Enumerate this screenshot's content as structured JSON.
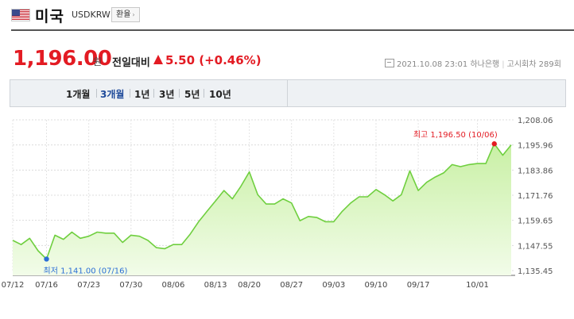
{
  "header": {
    "flag_icon": "us-flag-icon",
    "country": "미국",
    "code": "USDKRW",
    "exchange_button": "환율"
  },
  "quote": {
    "price": "1,196.00",
    "unit": "원",
    "compare_label": "전일대비",
    "change": "5.50 (+0.46%)",
    "direction": "up",
    "timestamp": "2021.10.08 23:01",
    "bank": "하나은행",
    "notice": "고시회차 289회"
  },
  "colors": {
    "up": "#e31b23",
    "line": "#6fcf3f",
    "fill_top": "#c9f0a5",
    "fill_bottom": "#f2fce9",
    "min_marker": "#2b6fd6",
    "max_marker": "#e31b23"
  },
  "tabs": [
    {
      "label": "1개월",
      "active": false
    },
    {
      "label": "3개월",
      "active": true
    },
    {
      "label": "1년",
      "active": false
    },
    {
      "label": "3년",
      "active": false
    },
    {
      "label": "5년",
      "active": false
    },
    {
      "label": "10년",
      "active": false
    }
  ],
  "chart_data": {
    "type": "area",
    "ylim": [
      1135.45,
      1208.06
    ],
    "yticks": [
      "1,208.06",
      "1,195.96",
      "1,183.86",
      "1,171.76",
      "1,159.65",
      "1,147.55",
      "1,135.45"
    ],
    "xticks": [
      {
        "label": "07/12",
        "index": 0
      },
      {
        "label": "07/16",
        "index": 4
      },
      {
        "label": "07/23",
        "index": 9
      },
      {
        "label": "07/30",
        "index": 14
      },
      {
        "label": "08/06",
        "index": 19
      },
      {
        "label": "08/13",
        "index": 24
      },
      {
        "label": "08/20",
        "index": 28
      },
      {
        "label": "08/27",
        "index": 33
      },
      {
        "label": "09/03",
        "index": 38
      },
      {
        "label": "09/10",
        "index": 43
      },
      {
        "label": "09/17",
        "index": 48
      },
      {
        "label": "10/01",
        "index": 55
      }
    ],
    "values": [
      1150.0,
      1148.0,
      1151.0,
      1145.0,
      1141.0,
      1152.5,
      1150.5,
      1154.0,
      1151.0,
      1152.0,
      1154.0,
      1153.5,
      1153.5,
      1149.0,
      1152.5,
      1152.0,
      1150.0,
      1146.5,
      1146.0,
      1148.0,
      1148.0,
      1153.0,
      1159.0,
      1164.0,
      1169.0,
      1174.0,
      1170.0,
      1176.0,
      1183.0,
      1172.0,
      1167.5,
      1167.5,
      1170.0,
      1168.0,
      1159.5,
      1161.5,
      1161.0,
      1159.0,
      1159.0,
      1164.0,
      1168.0,
      1171.0,
      1171.0,
      1174.5,
      1172.0,
      1169.0,
      1172.0,
      1183.5,
      1174.0,
      1178.0,
      1180.5,
      1182.5,
      1186.5,
      1185.5,
      1186.5,
      1187.0,
      1187.0,
      1196.5,
      1191.0,
      1196.0
    ],
    "min": {
      "label": "최저 1,141.00 (07/16)",
      "index": 4,
      "value": 1141.0
    },
    "max": {
      "label": "최고 1,196.50 (10/06)",
      "index": 57,
      "value": 1196.5
    },
    "grid": true
  }
}
